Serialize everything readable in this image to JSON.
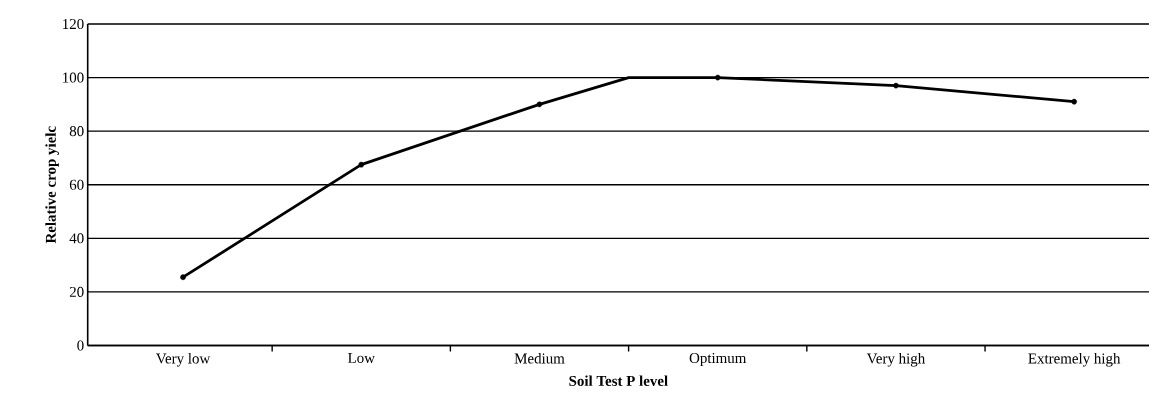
{
  "chart_data": {
    "type": "line",
    "xlabel": "Soil Test P level",
    "ylabel": "Relative crop yielc",
    "categories": [
      "Very low",
      null,
      "Low",
      null,
      "Medium",
      null,
      "Optimum",
      null,
      "Very high",
      null,
      "Extremely high"
    ],
    "ylim": [
      0,
      120
    ],
    "yticks": [
      0,
      20,
      40,
      60,
      80,
      100,
      120
    ],
    "grid": "y",
    "line_style": "solid",
    "series": [
      {
        "marker": "none",
        "color": "#000000",
        "values": [
          25.5,
          null,
          67.5,
          null,
          90,
          100,
          100,
          null,
          97,
          null,
          91
        ]
      },
      {
        "type": "scatter",
        "marker": "circle",
        "color": "#000000",
        "values": [
          25.5,
          null,
          67.5,
          null,
          90,
          null,
          100,
          null,
          97,
          null,
          91
        ]
      }
    ]
  }
}
